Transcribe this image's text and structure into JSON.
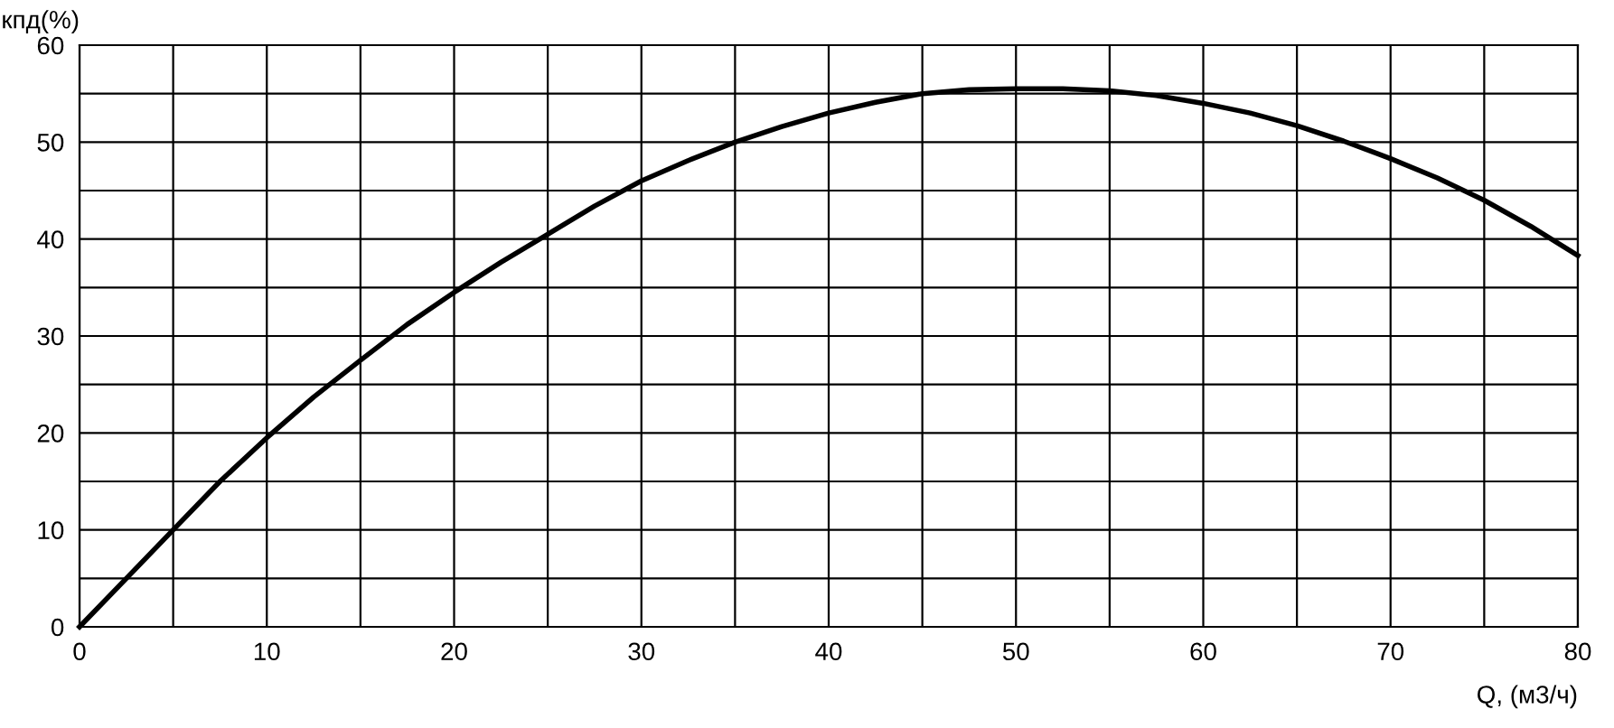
{
  "chart_data": {
    "type": "line",
    "xlabel": "Q, (м3/ч)",
    "ylabel": "кпд(%)",
    "x": [
      0,
      2.5,
      5,
      7.5,
      10,
      12.5,
      15,
      17.5,
      20,
      22.5,
      25,
      27.5,
      30,
      32.5,
      35,
      37.5,
      40,
      42.5,
      45,
      47.5,
      50,
      52.5,
      55,
      57.5,
      60,
      62.5,
      65,
      67.5,
      70,
      72.5,
      75,
      77.5,
      80
    ],
    "series": [
      {
        "color": "#000000",
        "values": [
          0,
          5,
          10,
          15,
          19.5,
          23.7,
          27.5,
          31.2,
          34.5,
          37.6,
          40.5,
          43.4,
          46,
          48.1,
          50,
          51.6,
          53,
          54.1,
          55,
          55.4,
          55.5,
          55.5,
          55.3,
          54.8,
          54,
          53,
          51.7,
          50.1,
          48.3,
          46.3,
          44,
          41.3,
          38.3
        ]
      }
    ],
    "xlim": [
      0,
      80
    ],
    "ylim": [
      0,
      60
    ],
    "xticks": [
      0,
      {
        "value": 5,
        "label": null
      },
      10,
      {
        "value": 15,
        "label": null
      },
      20,
      {
        "value": 25,
        "label": null
      },
      30,
      {
        "value": 35,
        "label": null
      },
      40,
      {
        "value": 45,
        "label": null
      },
      50,
      {
        "value": 55,
        "label": null
      },
      60,
      {
        "value": 65,
        "label": null
      },
      70,
      {
        "value": 75,
        "label": null
      },
      80
    ],
    "yticks": [
      0,
      {
        "value": 5,
        "label": null
      },
      10,
      {
        "value": 15,
        "label": null
      },
      20,
      {
        "value": 25,
        "label": null
      },
      30,
      {
        "value": 35,
        "label": null
      },
      40,
      {
        "value": 45,
        "label": null
      },
      50,
      {
        "value": 55,
        "label": null
      },
      60
    ],
    "grid": true,
    "marker": "none",
    "line_style": "solid"
  }
}
